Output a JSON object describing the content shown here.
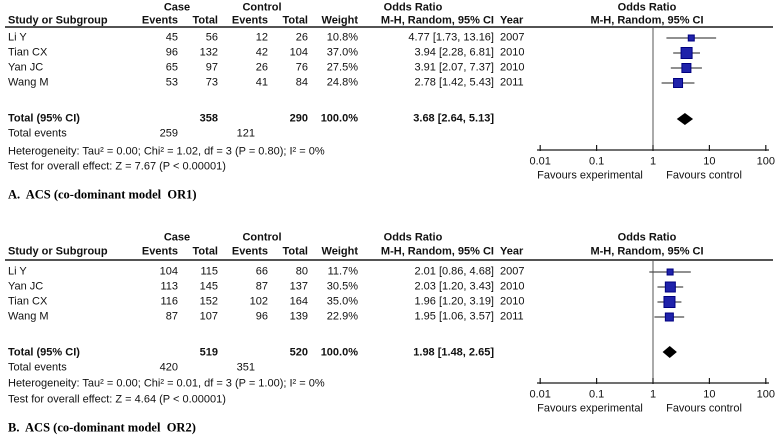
{
  "colors": {
    "square_fill": "#1f22aa",
    "square_border": "#000080",
    "ci_line": "#4d4d4d",
    "diamond": "#000000",
    "axis": "#1a1a1a",
    "text": "#111111"
  },
  "chart_data": [
    {
      "type": "forest",
      "panel_label": "A.  ACS (co-dominant model  OR1)",
      "header": {
        "case": "Case",
        "control": "Control",
        "odds_ratio_left": "Odds Ratio",
        "odds_ratio_right": "Odds Ratio",
        "study": "Study or Subgroup",
        "events": "Events",
        "total": "Total",
        "weight": "Weight",
        "mh": "M-H, Random, 95% CI",
        "year": "Year"
      },
      "studies": [
        {
          "name": "Li Y",
          "case_events": "45",
          "case_total": "56",
          "ctrl_events": "12",
          "ctrl_total": "26",
          "weight": "10.8%",
          "or": 4.77,
          "ci_low": 1.73,
          "ci_high": 13.16,
          "or_text": "4.77 [1.73, 13.16]",
          "year": "2007"
        },
        {
          "name": "Tian CX",
          "case_events": "96",
          "case_total": "132",
          "ctrl_events": "42",
          "ctrl_total": "104",
          "weight": "37.0%",
          "or": 3.94,
          "ci_low": 2.28,
          "ci_high": 6.81,
          "or_text": "3.94 [2.28, 6.81]",
          "year": "2010"
        },
        {
          "name": "Yan JC",
          "case_events": "65",
          "case_total": "97",
          "ctrl_events": "26",
          "ctrl_total": "76",
          "weight": "27.5%",
          "or": 3.91,
          "ci_low": 2.07,
          "ci_high": 7.37,
          "or_text": "3.91 [2.07, 7.37]",
          "year": "2010"
        },
        {
          "name": "Wang M",
          "case_events": "53",
          "case_total": "73",
          "ctrl_events": "41",
          "ctrl_total": "84",
          "weight": "24.8%",
          "or": 2.78,
          "ci_low": 1.42,
          "ci_high": 5.43,
          "or_text": "2.78 [1.42, 5.43]",
          "year": "2011"
        }
      ],
      "total": {
        "label": "Total (95% CI)",
        "case_total": "358",
        "ctrl_total": "290",
        "weight": "100.0%",
        "or": 3.68,
        "ci_low": 2.64,
        "ci_high": 5.13,
        "or_text": "3.68 [2.64, 5.13]"
      },
      "total_events": {
        "label": "Total events",
        "case": "259",
        "control": "121"
      },
      "heterogeneity": "Heterogeneity: Tau² = 0.00; Chi² = 1.02, df = 3 (P = 0.80); I² = 0%",
      "overall_effect": "Test for overall effect: Z = 7.67 (P < 0.00001)",
      "axis": {
        "scale": "log",
        "ticks": [
          "0.01",
          "0.1",
          "1",
          "10",
          "100"
        ],
        "left_label": "Favours experimental",
        "right_label": "Favours control"
      }
    },
    {
      "type": "forest",
      "panel_label": "B.  ACS (co-dominant model  OR2)",
      "header": {
        "case": "Case",
        "control": "Control",
        "odds_ratio_left": "Odds Ratio",
        "odds_ratio_right": "Odds Ratio",
        "study": "Study or Subgroup",
        "events": "Events",
        "total": "Total",
        "weight": "Weight",
        "mh": "M-H, Random, 95% CI",
        "year": "Year"
      },
      "studies": [
        {
          "name": "Li Y",
          "case_events": "104",
          "case_total": "115",
          "ctrl_events": "66",
          "ctrl_total": "80",
          "weight": "11.7%",
          "or": 2.01,
          "ci_low": 0.86,
          "ci_high": 4.68,
          "or_text": "2.01 [0.86, 4.68]",
          "year": "2007"
        },
        {
          "name": "Yan JC",
          "case_events": "113",
          "case_total": "145",
          "ctrl_events": "87",
          "ctrl_total": "137",
          "weight": "30.5%",
          "or": 2.03,
          "ci_low": 1.2,
          "ci_high": 3.43,
          "or_text": "2.03 [1.20, 3.43]",
          "year": "2010"
        },
        {
          "name": "Tian CX",
          "case_events": "116",
          "case_total": "152",
          "ctrl_events": "102",
          "ctrl_total": "164",
          "weight": "35.0%",
          "or": 1.96,
          "ci_low": 1.2,
          "ci_high": 3.19,
          "or_text": "1.96 [1.20, 3.19]",
          "year": "2010"
        },
        {
          "name": "Wang M",
          "case_events": "87",
          "case_total": "107",
          "ctrl_events": "96",
          "ctrl_total": "139",
          "weight": "22.9%",
          "or": 1.95,
          "ci_low": 1.06,
          "ci_high": 3.57,
          "or_text": "1.95 [1.06, 3.57]",
          "year": "2011"
        }
      ],
      "total": {
        "label": "Total (95% CI)",
        "case_total": "519",
        "ctrl_total": "520",
        "weight": "100.0%",
        "or": 1.98,
        "ci_low": 1.48,
        "ci_high": 2.65,
        "or_text": "1.98 [1.48, 2.65]"
      },
      "total_events": {
        "label": "Total events",
        "case": "420",
        "control": "351"
      },
      "heterogeneity": "Heterogeneity: Tau² = 0.00; Chi² = 0.01, df = 3 (P = 1.00); I² = 0%",
      "overall_effect": "Test for overall effect: Z = 4.64 (P < 0.00001)",
      "axis": {
        "scale": "log",
        "ticks": [
          "0.01",
          "0.1",
          "1",
          "10",
          "100"
        ],
        "left_label": "Favours experimental",
        "right_label": "Favours control"
      }
    }
  ]
}
